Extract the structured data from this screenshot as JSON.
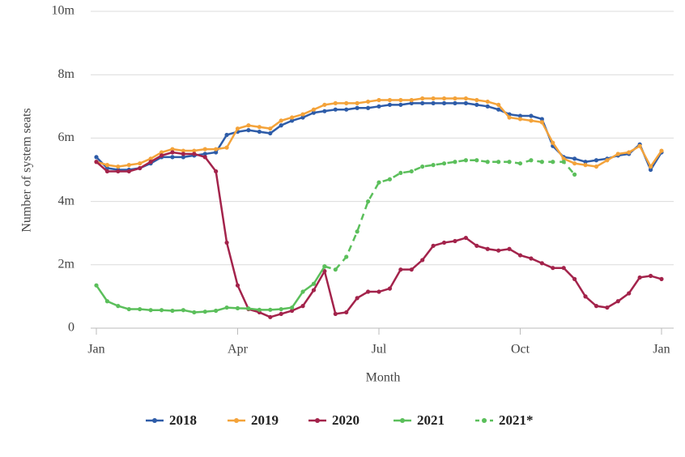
{
  "chart_data": {
    "type": "line",
    "x_label": "Month",
    "y_label": "Number of system seats",
    "x": [
      0,
      1,
      2,
      3,
      4,
      5,
      6,
      7,
      8,
      9,
      10,
      11,
      12,
      13,
      14,
      15,
      16,
      17,
      18,
      19,
      20,
      21,
      22,
      23,
      24,
      25,
      26,
      27,
      28,
      29,
      30,
      31,
      32,
      33,
      34,
      35,
      36,
      37,
      38,
      39,
      40,
      41,
      42,
      43,
      44,
      45,
      46,
      47,
      48,
      49,
      50,
      51,
      52
    ],
    "xlim": [
      0,
      52
    ],
    "xticks": [
      {
        "value": 0,
        "label": "Jan"
      },
      {
        "value": 13,
        "label": "Apr"
      },
      {
        "value": 26,
        "label": "Jul"
      },
      {
        "value": 39,
        "label": "Oct"
      },
      {
        "value": 52,
        "label": "Jan"
      }
    ],
    "ylim": [
      0,
      10
    ],
    "yticks": [
      0,
      {
        "value": 2,
        "label": "2m"
      },
      {
        "value": 4,
        "label": "4m"
      },
      {
        "value": 6,
        "label": "6m"
      },
      {
        "value": 8,
        "label": "8m"
      },
      {
        "value": 10,
        "label": "10m"
      }
    ],
    "grid": true,
    "legend": "bottom",
    "series": [
      {
        "name": "2018",
        "color": "#2e5ca8",
        "dashed": false,
        "values": [
          5.4,
          5.05,
          5.0,
          5.0,
          5.05,
          5.2,
          5.4,
          5.4,
          5.4,
          5.45,
          5.5,
          5.55,
          6.1,
          6.2,
          6.25,
          6.2,
          6.15,
          6.4,
          6.55,
          6.65,
          6.8,
          6.85,
          6.9,
          6.9,
          6.95,
          6.95,
          7.0,
          7.05,
          7.05,
          7.1,
          7.1,
          7.1,
          7.1,
          7.1,
          7.1,
          7.05,
          7.0,
          6.9,
          6.75,
          6.7,
          6.7,
          6.6,
          5.75,
          5.4,
          5.35,
          5.25,
          5.3,
          5.35,
          5.45,
          5.5,
          5.8,
          5.0,
          5.55
        ]
      },
      {
        "name": "2019",
        "color": "#f4a33a",
        "dashed": false,
        "values": [
          5.25,
          5.15,
          5.1,
          5.15,
          5.2,
          5.35,
          5.55,
          5.65,
          5.6,
          5.6,
          5.65,
          5.65,
          5.7,
          6.3,
          6.4,
          6.35,
          6.3,
          6.55,
          6.65,
          6.75,
          6.9,
          7.05,
          7.1,
          7.1,
          7.1,
          7.15,
          7.2,
          7.2,
          7.2,
          7.2,
          7.25,
          7.25,
          7.25,
          7.25,
          7.25,
          7.2,
          7.15,
          7.05,
          6.65,
          6.6,
          6.55,
          6.5,
          5.85,
          5.35,
          5.2,
          5.15,
          5.1,
          5.3,
          5.5,
          5.55,
          5.75,
          5.1,
          5.6
        ]
      },
      {
        "name": "2020",
        "color": "#a3234b",
        "dashed": false,
        "values": [
          5.25,
          4.95,
          4.95,
          4.95,
          5.05,
          5.25,
          5.45,
          5.55,
          5.5,
          5.5,
          5.4,
          4.95,
          2.7,
          1.35,
          0.6,
          0.5,
          0.35,
          0.45,
          0.55,
          0.7,
          1.2,
          1.8,
          0.45,
          0.5,
          0.95,
          1.15,
          1.15,
          1.25,
          1.85,
          1.85,
          2.15,
          2.6,
          2.7,
          2.75,
          2.85,
          2.6,
          2.5,
          2.45,
          2.5,
          2.3,
          2.2,
          2.05,
          1.9,
          1.9,
          1.55,
          1.0,
          0.7,
          0.65,
          0.85,
          1.1,
          1.6,
          1.65,
          1.55
        ]
      },
      {
        "name": "2021",
        "color": "#5bbf5b",
        "dashed": false,
        "values": [
          1.35,
          0.85,
          0.7,
          0.6,
          0.6,
          0.57,
          0.57,
          0.55,
          0.57,
          0.5,
          0.52,
          0.55,
          0.65,
          0.63,
          0.62,
          0.58,
          0.58,
          0.6,
          0.65,
          1.15,
          1.4,
          1.95,
          null,
          null,
          null,
          null,
          null,
          null,
          null,
          null,
          null,
          null,
          null,
          null,
          null,
          null,
          null,
          null,
          null,
          null,
          null,
          null,
          null,
          null,
          null,
          null,
          null,
          null,
          null,
          null,
          null,
          null,
          null
        ]
      },
      {
        "name": "2021*",
        "color": "#5bbf5b",
        "dashed": true,
        "values": [
          null,
          null,
          null,
          null,
          null,
          null,
          null,
          null,
          null,
          null,
          null,
          null,
          null,
          null,
          null,
          null,
          null,
          null,
          null,
          null,
          null,
          1.95,
          1.85,
          2.25,
          3.05,
          4.0,
          4.6,
          4.7,
          4.9,
          4.95,
          5.1,
          5.15,
          5.2,
          5.25,
          5.3,
          5.3,
          5.25,
          5.25,
          5.25,
          5.2,
          5.3,
          5.25,
          5.25,
          5.25,
          4.85,
          null,
          null,
          null,
          null,
          null,
          null,
          null,
          null
        ]
      }
    ]
  }
}
